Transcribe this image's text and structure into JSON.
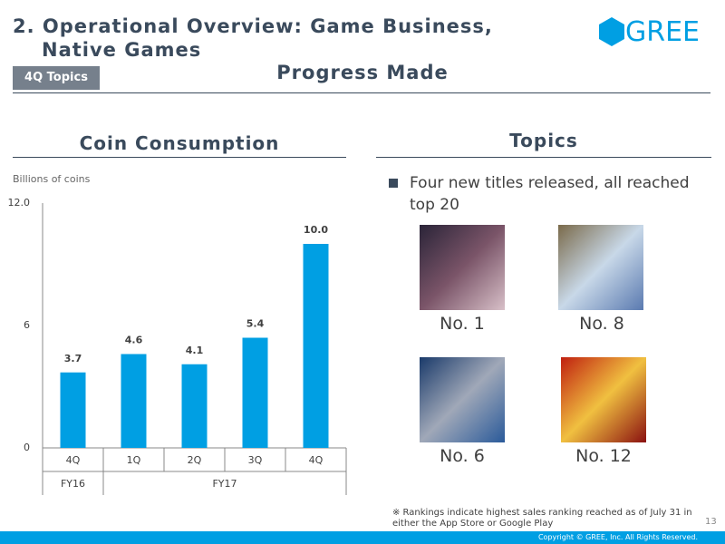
{
  "header": {
    "title_lines": [
      "2. Operational Overview: Game Business,",
      "Native Games"
    ],
    "logo": "GREE",
    "tag": "4Q Topics",
    "subtitle": "Progress Made"
  },
  "chart_data": {
    "type": "bar",
    "title": "Coin Consumption",
    "y_label": "Billions of coins",
    "categories": [
      "4Q",
      "1Q",
      "2Q",
      "3Q",
      "4Q"
    ],
    "groups": [
      "FY16",
      "FY17"
    ],
    "values": [
      3.7,
      4.6,
      4.1,
      5.4,
      10.0
    ],
    "value_labels": [
      "3.7",
      "4.6",
      "4.1",
      "5.4",
      "10.0"
    ],
    "color": "#009fe3",
    "ylim": [
      0,
      12
    ],
    "yticks": [
      0,
      6,
      {
        "value": 12,
        "label": "12.0"
      }
    ],
    "grid": false
  },
  "topics": {
    "title": "Topics",
    "bullet": "Four new titles released, all reached top 20",
    "ranks": [
      "No. 1",
      "No. 8",
      "No. 6",
      "No. 12"
    ],
    "note": "※  Rankings indicate highest sales ranking reached as of July 31 in either the App Store or Google Play"
  },
  "footer": {
    "page": "13",
    "copyright": "Copyright © GREE, Inc. All Rights Reserved."
  }
}
